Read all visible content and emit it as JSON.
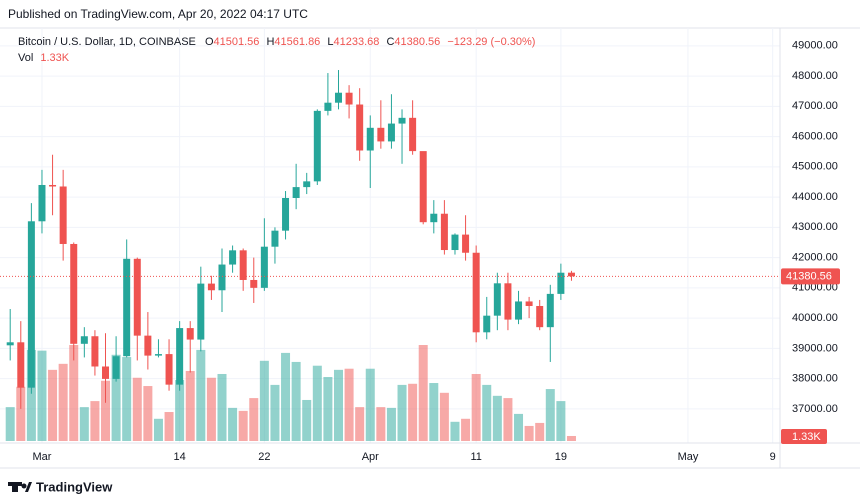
{
  "header": {
    "published": "Published on TradingView.com, Apr 20, 2022 04:17 UTC"
  },
  "footer": {
    "brand": "TradingView"
  },
  "chart_data": {
    "type": "candlestick",
    "title": "Bitcoin / U.S. Dollar, 1D, COINBASE",
    "legend": {
      "o": "O",
      "h": "H",
      "l": "L",
      "c": "C",
      "change": "−123.29 (−0.30%)",
      "vol": "Vol"
    },
    "x": [
      "2022-02-26",
      "2022-02-27",
      "2022-02-28",
      "2022-03-01",
      "2022-03-02",
      "2022-03-03",
      "2022-03-04",
      "2022-03-05",
      "2022-03-06",
      "2022-03-07",
      "2022-03-08",
      "2022-03-09",
      "2022-03-10",
      "2022-03-11",
      "2022-03-12",
      "2022-03-13",
      "2022-03-14",
      "2022-03-15",
      "2022-03-16",
      "2022-03-17",
      "2022-03-18",
      "2022-03-19",
      "2022-03-20",
      "2022-03-21",
      "2022-03-22",
      "2022-03-23",
      "2022-03-24",
      "2022-03-25",
      "2022-03-26",
      "2022-03-27",
      "2022-03-28",
      "2022-03-29",
      "2022-03-30",
      "2022-03-31",
      "2022-04-01",
      "2022-04-02",
      "2022-04-03",
      "2022-04-04",
      "2022-04-05",
      "2022-04-06",
      "2022-04-07",
      "2022-04-08",
      "2022-04-09",
      "2022-04-10",
      "2022-04-11",
      "2022-04-12",
      "2022-04-13",
      "2022-04-14",
      "2022-04-15",
      "2022-04-16",
      "2022-04-17",
      "2022-04-18",
      "2022-04-19",
      "2022-04-20"
    ],
    "open": [
      39100,
      39200,
      37700,
      43200,
      44400,
      44350,
      42450,
      39150,
      39400,
      38400,
      37990,
      38740,
      41960,
      39420,
      38760,
      38810,
      37800,
      39670,
      39290,
      41140,
      40920,
      41770,
      42240,
      41260,
      41000,
      42360,
      42890,
      43970,
      44330,
      44520,
      46850,
      47120,
      47450,
      47060,
      45540,
      46290,
      45840,
      46430,
      46620,
      45520,
      43170,
      43450,
      42250,
      42760,
      42160,
      39530,
      40080,
      41150,
      39950,
      40550,
      40400,
      39700,
      40800,
      41501.56
    ],
    "high": [
      40300,
      39900,
      43800,
      44900,
      45400,
      44900,
      42500,
      39700,
      39600,
      39500,
      39400,
      42600,
      42000,
      40200,
      39300,
      39300,
      39900,
      39900,
      41700,
      41400,
      42300,
      42400,
      42300,
      42000,
      43300,
      43000,
      44200,
      45100,
      44800,
      46900,
      48100,
      48200,
      47700,
      47600,
      46700,
      47200,
      47400,
      46900,
      47200,
      45500,
      43900,
      43900,
      42800,
      43400,
      42400,
      40700,
      41500,
      41500,
      40900,
      40700,
      40600,
      41100,
      41800,
      41561.86
    ],
    "low": [
      38600,
      37000,
      37500,
      42800,
      43400,
      41900,
      38600,
      38700,
      38100,
      37200,
      37900,
      38700,
      38600,
      38300,
      38700,
      37600,
      37600,
      38200,
      38900,
      40600,
      40200,
      41500,
      40900,
      40500,
      40900,
      41800,
      42600,
      43600,
      44100,
      44400,
      46700,
      46900,
      46600,
      45200,
      44300,
      45600,
      45600,
      45100,
      45400,
      43100,
      42800,
      42100,
      42100,
      41900,
      39200,
      39300,
      39600,
      39600,
      39800,
      40000,
      39600,
      38550,
      40600,
      41233.68
    ],
    "close": [
      39200,
      37700,
      43200,
      44400,
      44350,
      42450,
      39150,
      39400,
      38400,
      37990,
      38740,
      41960,
      39420,
      38760,
      38810,
      37800,
      39670,
      39290,
      41140,
      40920,
      41770,
      42240,
      41260,
      41000,
      42360,
      42890,
      43970,
      44330,
      44520,
      46850,
      47120,
      47450,
      47060,
      45540,
      46290,
      45840,
      46430,
      46620,
      45520,
      43170,
      43450,
      42250,
      42760,
      42160,
      39530,
      40080,
      41150,
      39950,
      40550,
      40400,
      39700,
      40800,
      41500,
      41380.56
    ],
    "volume": [
      9000,
      14400,
      24200,
      24000,
      18900,
      20500,
      25500,
      9000,
      10600,
      16000,
      22900,
      22300,
      16800,
      14600,
      5900,
      7700,
      16200,
      18600,
      24200,
      16800,
      17800,
      8800,
      8000,
      11400,
      21300,
      14900,
      23400,
      21000,
      10900,
      20000,
      17000,
      18900,
      19200,
      9000,
      19200,
      9000,
      8800,
      14900,
      15200,
      25500,
      15400,
      12800,
      5100,
      5900,
      17800,
      14900,
      12000,
      11400,
      7200,
      4000,
      4800,
      13800,
      10600,
      1330
    ],
    "volume_label": "1.33K",
    "up_color": "#26a69a",
    "down_color": "#ef5350",
    "ylim": [
      36000,
      49500
    ],
    "yticks": [
      {
        "value": 37000,
        "label": "37000.00"
      },
      {
        "value": 38000,
        "label": "38000.00"
      },
      {
        "value": 39000,
        "label": "39000.00"
      },
      {
        "value": 40000,
        "label": "40000.00"
      },
      {
        "value": 41000,
        "label": "41000.00"
      },
      {
        "value": 42000,
        "label": "42000.00"
      },
      {
        "value": 43000,
        "label": "43000.00"
      },
      {
        "value": 44000,
        "label": "44000.00"
      },
      {
        "value": 45000,
        "label": "45000.00"
      },
      {
        "value": 46000,
        "label": "46000.00"
      },
      {
        "value": 47000,
        "label": "47000.00"
      },
      {
        "value": 48000,
        "label": "48000.00"
      },
      {
        "value": 49000,
        "label": "49000.00"
      }
    ],
    "xticks": [
      {
        "value": "2022-03-01",
        "label": "Mar"
      },
      {
        "value": "2022-03-14",
        "label": "14"
      },
      {
        "value": "2022-03-22",
        "label": "22"
      },
      {
        "value": "2022-04-01",
        "label": "Apr"
      },
      {
        "value": "2022-04-11",
        "label": "11"
      },
      {
        "value": "2022-04-19",
        "label": "19"
      },
      {
        "value": "2022-05-01",
        "label": "May"
      },
      {
        "value": "2022-05-09",
        "label": "9"
      }
    ],
    "grid": true
  }
}
